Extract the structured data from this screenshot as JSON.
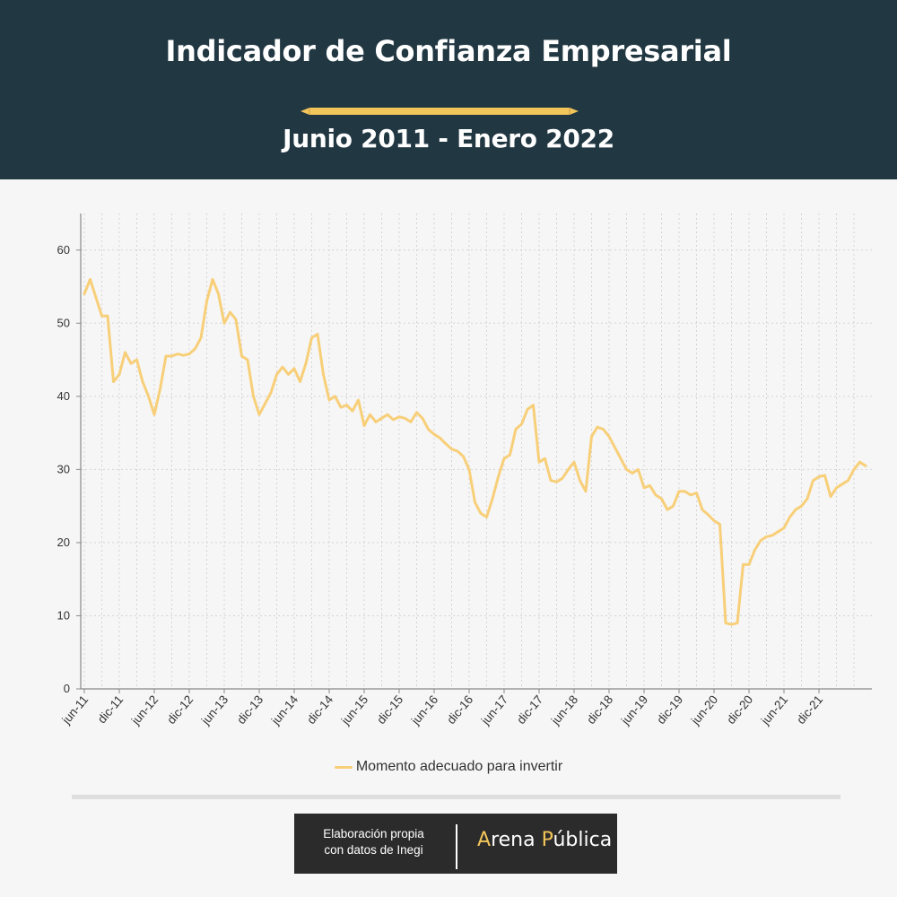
{
  "header": {
    "title": "Indicador de Confianza Empresarial",
    "subtitle": "Junio 2011 - Enero 2022"
  },
  "colors": {
    "header_bg": "#213742",
    "line": "#f8cf79",
    "accent": "#f2c55a"
  },
  "chart_data": {
    "type": "line",
    "title": "",
    "xlabel": "",
    "ylabel": "",
    "ylim": [
      0,
      65
    ],
    "yticks": [
      0,
      10,
      20,
      30,
      40,
      50,
      60
    ],
    "xtick_labels": [
      "jun-11",
      "dic-11",
      "jun-12",
      "dic-12",
      "jun-13",
      "dic-13",
      "jun-14",
      "dic-14",
      "jun-15",
      "dic-15",
      "jun-16",
      "dic-16",
      "jun-17",
      "dic-17",
      "jun-18",
      "dic-18",
      "jun-19",
      "dic-19",
      "jun-20",
      "dic-20",
      "jun-21",
      "dic-21"
    ],
    "grid": true,
    "legend_position": "bottom",
    "series": [
      {
        "name": "Momento adecuado para invertir",
        "color": "#f8cf79",
        "values": [
          54.0,
          56.0,
          53.5,
          51.0,
          51.0,
          42.0,
          43.0,
          46.0,
          44.5,
          45.0,
          42.0,
          40.0,
          37.5,
          41.0,
          45.5,
          45.5,
          45.8,
          45.6,
          45.8,
          46.5,
          48.0,
          53.0,
          56.0,
          54.0,
          50.0,
          51.5,
          50.5,
          45.5,
          45.0,
          40.0,
          37.5,
          39.0,
          40.5,
          43.0,
          44.0,
          43.0,
          43.8,
          42.0,
          44.5,
          48.0,
          48.5,
          43.0,
          39.5,
          40.0,
          38.5,
          38.8,
          38.0,
          39.5,
          36.0,
          37.5,
          36.5,
          37.0,
          37.5,
          36.8,
          37.2,
          37.0,
          36.5,
          37.8,
          37.0,
          35.5,
          34.8,
          34.3,
          33.5,
          32.8,
          32.5,
          31.8,
          30.0,
          25.5,
          24.0,
          23.5,
          26.0,
          29.0,
          31.5,
          32.0,
          35.5,
          36.2,
          38.2,
          38.8,
          31.0,
          31.5,
          28.5,
          28.3,
          28.8,
          30.0,
          31.0,
          28.5,
          27.0,
          34.5,
          35.8,
          35.5,
          34.5,
          33.0,
          31.5,
          30.0,
          29.5,
          30.0,
          27.5,
          27.8,
          26.5,
          26.0,
          24.5,
          25.0,
          27.0,
          27.0,
          26.5,
          26.8,
          24.5,
          23.8,
          23.0,
          22.5,
          9.0,
          8.8,
          9.0,
          17.0,
          17.0,
          19.0,
          20.3,
          20.8,
          21.0,
          21.5,
          22.0,
          23.5,
          24.5,
          25.0,
          26.0,
          28.5,
          29.0,
          29.2,
          26.3,
          27.5,
          28.0,
          28.5,
          30.0,
          31.0,
          30.5
        ]
      }
    ]
  },
  "footer": {
    "credit_line1": "Elaboración propia",
    "credit_line2": "con datos de Inegi",
    "brand_part1": "A",
    "brand_part2": "rena ",
    "brand_part3": "P",
    "brand_part4": "ública"
  }
}
